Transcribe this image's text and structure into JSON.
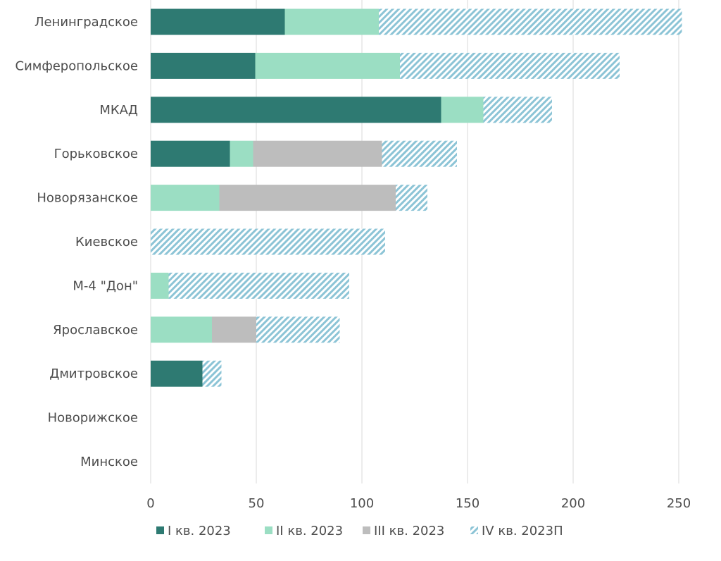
{
  "chart_data": {
    "type": "bar",
    "orientation": "horizontal",
    "stacked": true,
    "title": "",
    "xlabel": "",
    "ylabel": "",
    "xlim": [
      0,
      250
    ],
    "x_ticks": [
      "0",
      "50",
      "100",
      "150",
      "200",
      "250"
    ],
    "grid": "vertical",
    "legend_position": "bottom",
    "categories": [
      "Ленинградское",
      "Симферопольское",
      "МКАД",
      "Горьковское",
      "Новорязанское",
      "Киевское",
      "М-4 \"Дон\"",
      "Ярославское",
      "Дмитровское",
      "Новорижское",
      "Минское"
    ],
    "series": [
      {
        "name": "I кв. 2023",
        "color": "#2e7a72",
        "pattern": "solid",
        "values": [
          63.5,
          49.5,
          137.5,
          37.5,
          0,
          0,
          0,
          0,
          24.5,
          0,
          0
        ]
      },
      {
        "name": "II кв. 2023",
        "color": "#9bdec3",
        "pattern": "solid",
        "values": [
          44.5,
          68.5,
          20,
          11,
          32.5,
          0,
          8.5,
          29,
          0,
          0,
          0
        ]
      },
      {
        "name": "III кв. 2023",
        "color": "#bdbdbd",
        "pattern": "solid",
        "values": [
          0,
          0,
          0,
          61,
          83.5,
          0,
          0,
          21,
          0,
          0,
          0
        ]
      },
      {
        "name": "IV кв. 2023П",
        "color": "#8cc4d6",
        "pattern": "hatch",
        "values": [
          143.5,
          104,
          32.5,
          35.5,
          15,
          111,
          85.5,
          39.5,
          9,
          0,
          0
        ]
      }
    ]
  }
}
